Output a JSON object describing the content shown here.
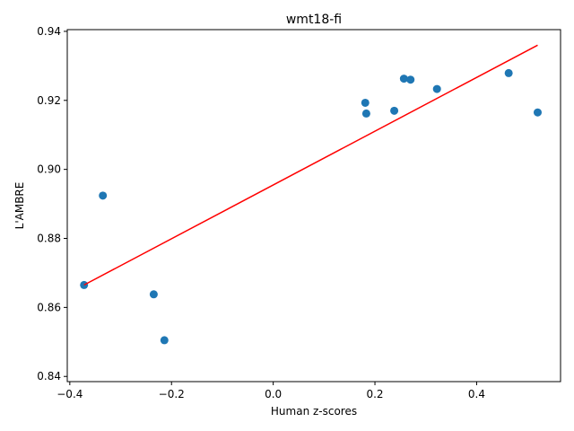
{
  "chart_data": {
    "type": "scatter",
    "title": "wmt18-fi",
    "xlabel": "Human z-scores",
    "ylabel": "L'AMBRE",
    "xlim": [
      -0.405,
      0.565
    ],
    "ylim": [
      0.8385,
      0.9405
    ],
    "xticks": [
      -0.4,
      -0.2,
      0.0,
      0.2,
      0.4
    ],
    "xtick_labels": [
      "−0.4",
      "−0.2",
      "0.0",
      "0.2",
      "0.4"
    ],
    "yticks": [
      0.84,
      0.86,
      0.88,
      0.9,
      0.92,
      0.94
    ],
    "ytick_labels": [
      "0.84",
      "0.86",
      "0.88",
      "0.90",
      "0.92",
      "0.94"
    ],
    "grid": false,
    "points": [
      {
        "x": -0.372,
        "y": 0.8665
      },
      {
        "x": -0.335,
        "y": 0.8924
      },
      {
        "x": -0.235,
        "y": 0.8638
      },
      {
        "x": -0.214,
        "y": 0.8505
      },
      {
        "x": 0.181,
        "y": 0.9193
      },
      {
        "x": 0.183,
        "y": 0.9162
      },
      {
        "x": 0.238,
        "y": 0.917
      },
      {
        "x": 0.257,
        "y": 0.9263
      },
      {
        "x": 0.27,
        "y": 0.926
      },
      {
        "x": 0.322,
        "y": 0.9233
      },
      {
        "x": 0.463,
        "y": 0.9279
      },
      {
        "x": 0.52,
        "y": 0.9165
      }
    ],
    "fit_line": {
      "x": [
        -0.372,
        0.52
      ],
      "y": [
        0.8665,
        0.936
      ]
    },
    "colors": {
      "points": "#1f77b4",
      "fit_line": "#ff0000"
    }
  }
}
